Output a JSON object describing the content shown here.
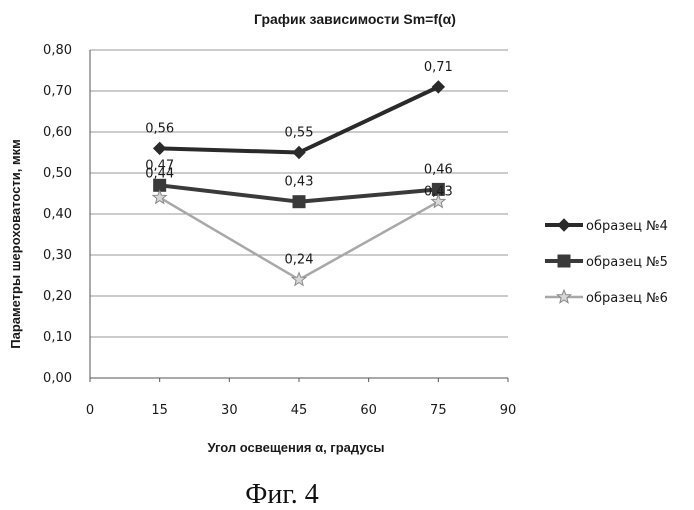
{
  "chart_data": {
    "type": "line",
    "title": "График зависимости Sm=f(α)",
    "xlabel": "Угол освещения α, градусы",
    "ylabel": "Параметры шероховатости, мкм",
    "xlim": [
      0,
      90
    ],
    "ylim": [
      0,
      0.8
    ],
    "x_ticks": [
      "0",
      "15",
      "30",
      "45",
      "60",
      "75",
      "90"
    ],
    "y_ticks": [
      "0,00",
      "0,10",
      "0,20",
      "0,30",
      "0,40",
      "0,50",
      "0,60",
      "0,70",
      "0,80"
    ],
    "grid": "horizontal",
    "legend_position": "right",
    "x": [
      15,
      45,
      75
    ],
    "series": [
      {
        "name": "образец №4",
        "marker": "diamond",
        "color": "#2a2a2a",
        "values": [
          0.56,
          0.55,
          0.71
        ],
        "labels": [
          "0,56",
          "0,55",
          "0,71"
        ]
      },
      {
        "name": "образец №5",
        "marker": "square",
        "color": "#3a3a3a",
        "values": [
          0.47,
          0.43,
          0.46
        ],
        "labels": [
          "0,47",
          "0,43",
          "0,46"
        ]
      },
      {
        "name": "образец №6",
        "marker": "star",
        "color": "#a8a8a8",
        "values": [
          0.44,
          0.24,
          0.43
        ],
        "labels": [
          "0,44",
          "0,24",
          "0,43"
        ]
      }
    ]
  },
  "caption": "Фиг. 4"
}
